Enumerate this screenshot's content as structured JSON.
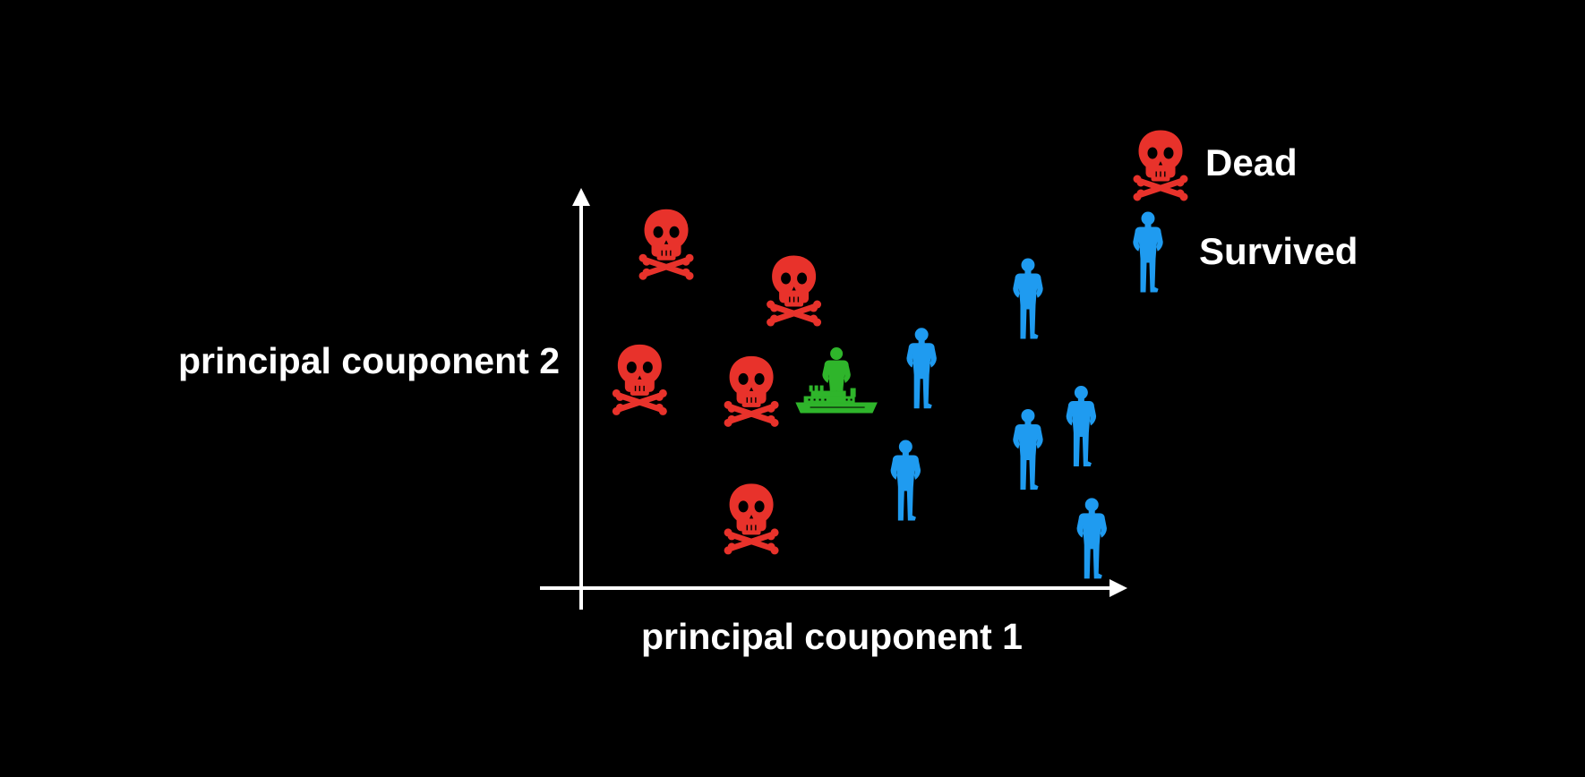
{
  "chart_data": {
    "type": "scatter",
    "title": "",
    "xlabel": "principal couponent 1",
    "ylabel": "principal couponent 2",
    "x_ticks": false,
    "y_ticks": false,
    "grid": false,
    "legend_position": "top-right",
    "xlim": [
      0,
      100
    ],
    "ylim": [
      0,
      100
    ],
    "series": [
      {
        "name": "Dead",
        "marker": "skull-and-crossbones-icon",
        "color": "#e8322b",
        "points": [
          {
            "x": 16,
            "y": 90
          },
          {
            "x": 40,
            "y": 78
          },
          {
            "x": 11,
            "y": 55
          },
          {
            "x": 32,
            "y": 52
          },
          {
            "x": 32,
            "y": 19
          }
        ]
      },
      {
        "name": "Survived",
        "marker": "standing-person-icon",
        "color": "#1f9bf0",
        "points": [
          {
            "x": 64,
            "y": 57
          },
          {
            "x": 84,
            "y": 75
          },
          {
            "x": 61,
            "y": 28
          },
          {
            "x": 84,
            "y": 36
          },
          {
            "x": 94,
            "y": 42
          },
          {
            "x": 96,
            "y": 13
          }
        ]
      },
      {
        "name": "",
        "marker": "person-on-ship-icon",
        "color": "#2fb52b",
        "points": [
          {
            "x": 48,
            "y": 53
          }
        ]
      }
    ]
  },
  "colors": {
    "background": "#000000",
    "axis": "#ffffff",
    "text": "#ffffff",
    "dead": "#e8322b",
    "survived": "#1f9bf0",
    "unknown": "#2fb52b"
  }
}
